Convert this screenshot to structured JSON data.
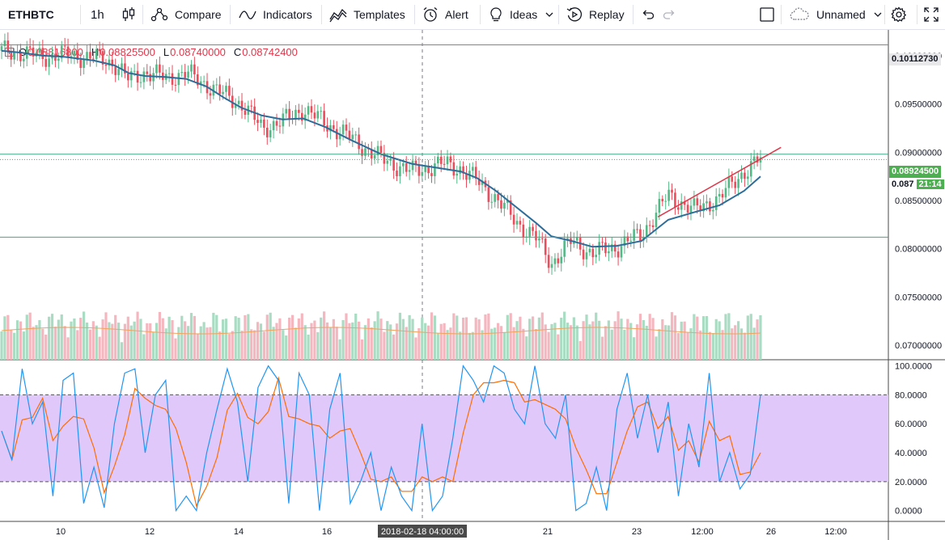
{
  "toolbar": {
    "symbol": "ETHBTC",
    "interval": "1h",
    "compare": "Compare",
    "indicators": "Indicators",
    "templates": "Templates",
    "alert": "Alert",
    "ideas": "Ideas",
    "replay": "Replay",
    "layout_name": "Unnamed"
  },
  "legend": {
    "o_label": "O",
    "o_value": "0.08816800",
    "h_label": "H",
    "h_value": "0.08825500",
    "l_label": "L",
    "l_value": "0.08740000",
    "c_label": "C",
    "c_value": "0.08742400"
  },
  "price_labels": {
    "top_line": "0.10112730",
    "mid_line": "0.08924500",
    "current_price": "0.087",
    "countdown": "21:14"
  },
  "colors": {
    "up": "#53b987",
    "down": "#eb4d5c",
    "ma": "#2e6c9a",
    "trend": "#e0374b",
    "hline": "#3fa785",
    "osc_band": "#e1c8fb",
    "k_line": "#2196f3",
    "d_line": "#ff6d00"
  },
  "chart_data": [
    {
      "type": "candlestick",
      "symbol": "ETHBTC",
      "interval": "1h",
      "price_axis": [
        "0.10000000",
        "0.09500000",
        "0.09000000",
        "0.08500000",
        "0.08000000",
        "0.07500000",
        "0.07000000"
      ],
      "ylim": [
        0.0685,
        0.1015
      ],
      "time_axis": [
        "10",
        "12",
        "14",
        "16",
        "2018-02-18 04:00:00",
        "21",
        "23",
        "12:00",
        "26",
        "12:00"
      ],
      "x": [
        0,
        10,
        20,
        30,
        45,
        55,
        62,
        70,
        80,
        90,
        100,
        108,
        117,
        127,
        137,
        147,
        158,
        170,
        185,
        200,
        215,
        224,
        232,
        241,
        251,
        261,
        268,
        278,
        288,
        300,
        312,
        325,
        338,
        350,
        362,
        370
      ],
      "close": [
        0.1005,
        0.1003,
        0.0999,
        0.1001,
        0.0998,
        0.0992,
        0.0975,
        0.0983,
        0.0977,
        0.0982,
        0.097,
        0.096,
        0.095,
        0.0925,
        0.0932,
        0.0945,
        0.093,
        0.0915,
        0.0893,
        0.088,
        0.0888,
        0.0883,
        0.087,
        0.0852,
        0.0828,
        0.081,
        0.0785,
        0.0808,
        0.0795,
        0.0802,
        0.0815,
        0.0855,
        0.084,
        0.0853,
        0.088,
        0.0893
      ],
      "ma": [
        0.1005,
        0.1003,
        0.1,
        0.0999,
        0.0995,
        0.099,
        0.0982,
        0.0979,
        0.0978,
        0.0976,
        0.0968,
        0.0957,
        0.0946,
        0.0938,
        0.0934,
        0.0935,
        0.0926,
        0.0913,
        0.0898,
        0.0888,
        0.0883,
        0.088,
        0.0873,
        0.086,
        0.0843,
        0.0826,
        0.0813,
        0.0808,
        0.0802,
        0.0803,
        0.0808,
        0.083,
        0.0838,
        0.0845,
        0.086,
        0.0875
      ],
      "horizontal_lines": [
        0.1011273,
        0.0898,
        0.0812
      ],
      "trend_line": [
        [
          320,
          0.0833
        ],
        [
          380,
          0.0905
        ]
      ]
    },
    {
      "type": "line",
      "name": "Stochastic",
      "y_axis": [
        "100.0000",
        "80.0000",
        "60.0000",
        "40.0000",
        "20.0000",
        "0.0000"
      ],
      "ylim": [
        -3,
        102
      ],
      "bands": [
        20,
        80
      ],
      "x": [
        0,
        5,
        10,
        15,
        20,
        25,
        30,
        35,
        40,
        45,
        50,
        55,
        60,
        65,
        70,
        75,
        80,
        85,
        90,
        95,
        100,
        105,
        110,
        115,
        120,
        125,
        130,
        135,
        140,
        145,
        150,
        155,
        160,
        165,
        170,
        175,
        180,
        185,
        190,
        195,
        200,
        205,
        210,
        215,
        220,
        225,
        230,
        235,
        240,
        245,
        250,
        255,
        260,
        265,
        270,
        275,
        280,
        285,
        290,
        295,
        300,
        305,
        310,
        315,
        320,
        325,
        330,
        335,
        340,
        345,
        350,
        355,
        360,
        365,
        370
      ],
      "k": [
        55,
        35,
        98,
        60,
        75,
        10,
        90,
        95,
        5,
        30,
        2,
        60,
        95,
        98,
        40,
        80,
        90,
        0,
        10,
        0,
        40,
        70,
        98,
        75,
        20,
        85,
        100,
        90,
        5,
        95,
        80,
        0,
        70,
        95,
        5,
        20,
        40,
        0,
        30,
        10,
        0,
        60,
        0,
        10,
        50,
        100,
        90,
        75,
        100,
        95,
        70,
        60,
        100,
        60,
        50,
        80,
        0,
        5,
        30,
        0,
        70,
        95,
        50,
        80,
        40,
        75,
        10,
        60,
        30,
        95,
        20,
        40,
        15,
        25,
        80
      ]
    }
  ]
}
